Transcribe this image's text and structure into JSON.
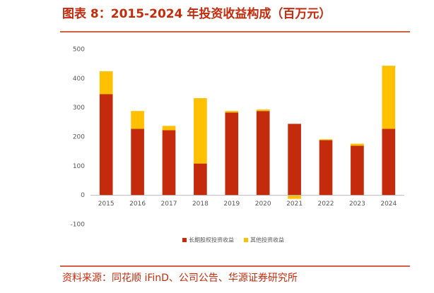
{
  "header": {
    "title": "图表 8：2015-2024 年投资收益构成（百万元）"
  },
  "chart_data": {
    "type": "stacked_bar",
    "categories": [
      "2015",
      "2016",
      "2017",
      "2018",
      "2019",
      "2020",
      "2021",
      "2022",
      "2023",
      "2024"
    ],
    "series": [
      {
        "name": "长期股权投资收益",
        "color": "#c42b0c",
        "values": [
          347,
          228,
          223,
          109,
          284,
          289,
          245,
          189,
          170,
          228
        ]
      },
      {
        "name": "其他投资收益",
        "color": "#ffc000",
        "values": [
          78,
          61,
          15,
          224,
          5,
          5,
          -12,
          3,
          7,
          216
        ]
      }
    ],
    "ylim": [
      -100,
      500
    ],
    "yticks": [
      -100,
      0,
      100,
      200,
      300,
      400,
      500
    ]
  },
  "footer": {
    "source": "资料来源：同花顺 iFinD、公司公告、华源证券研究所"
  }
}
